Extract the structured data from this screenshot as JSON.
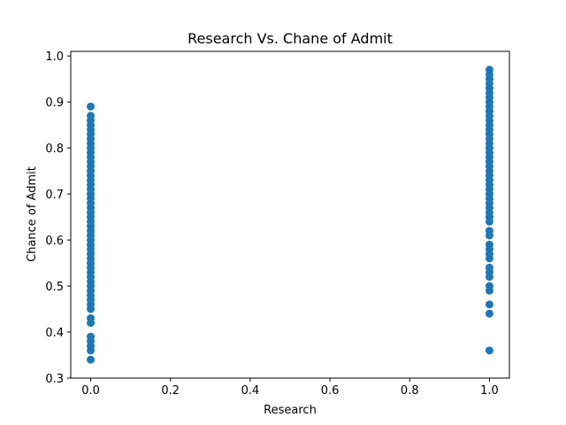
{
  "chart_data": {
    "type": "scatter",
    "title": "Research Vs. Chane of Admit",
    "xlabel": "Research",
    "ylabel": "Chance of Admit",
    "xlim": [
      -0.05,
      1.05
    ],
    "ylim": [
      0.3,
      1.01
    ],
    "x_ticks": [
      "0.0",
      "0.2",
      "0.4",
      "0.6",
      "0.8",
      "1.0"
    ],
    "y_ticks": [
      "0.3",
      "0.4",
      "0.5",
      "0.6",
      "0.7",
      "0.8",
      "0.9",
      "1.0"
    ],
    "grid": false,
    "marker_color": "#1f77b4",
    "series": [
      {
        "x": 0,
        "y": [
          0.34,
          0.36,
          0.37,
          0.38,
          0.39,
          0.42,
          0.43,
          0.45,
          0.46,
          0.47,
          0.48,
          0.49,
          0.5,
          0.51,
          0.52,
          0.53,
          0.54,
          0.55,
          0.56,
          0.57,
          0.58,
          0.59,
          0.6,
          0.61,
          0.62,
          0.63,
          0.64,
          0.65,
          0.66,
          0.67,
          0.68,
          0.69,
          0.7,
          0.71,
          0.72,
          0.73,
          0.74,
          0.75,
          0.76,
          0.77,
          0.78,
          0.79,
          0.8,
          0.81,
          0.82,
          0.83,
          0.84,
          0.85,
          0.86,
          0.87,
          0.89
        ]
      },
      {
        "x": 1,
        "y": [
          0.36,
          0.44,
          0.46,
          0.49,
          0.5,
          0.52,
          0.53,
          0.54,
          0.56,
          0.57,
          0.58,
          0.59,
          0.61,
          0.62,
          0.64,
          0.65,
          0.66,
          0.67,
          0.68,
          0.69,
          0.7,
          0.71,
          0.72,
          0.73,
          0.74,
          0.75,
          0.76,
          0.77,
          0.78,
          0.79,
          0.8,
          0.81,
          0.82,
          0.83,
          0.84,
          0.85,
          0.86,
          0.87,
          0.88,
          0.89,
          0.9,
          0.91,
          0.92,
          0.93,
          0.94,
          0.95,
          0.96,
          0.97
        ]
      }
    ]
  }
}
